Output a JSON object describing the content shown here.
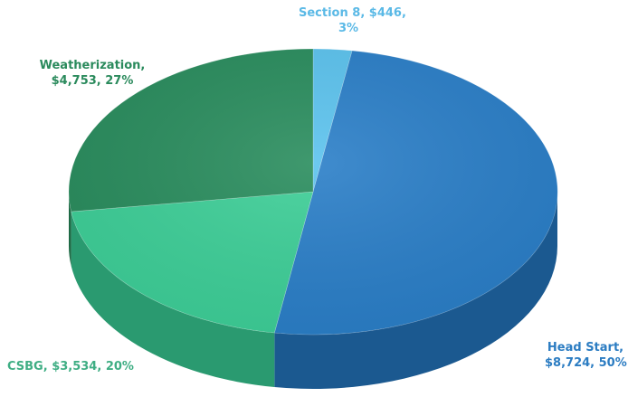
{
  "chart_data": {
    "type": "pie",
    "three_d": true,
    "categories": [
      "Section 8",
      "Head Start",
      "CSBG",
      "Weatherization"
    ],
    "values": [
      446,
      8724,
      3534,
      4753
    ],
    "percentages": [
      3,
      50,
      20,
      27
    ],
    "labels": [
      {
        "line1": "Section 8, $446,",
        "line2": "3%"
      },
      {
        "line1": "Head Start,",
        "line2": "$8,724, 50%"
      },
      {
        "line1": "CSBG, $3,534, 20%",
        "line2": ""
      },
      {
        "line1": "Weatherization,",
        "line2": "$4,753, 27%"
      }
    ],
    "colors": [
      "#5cc3ee",
      "#2b7fc8",
      "#3ecf98",
      "#2a8d5e"
    ],
    "side_colors": [
      "#3e9ac6",
      "#1b5990",
      "#2a9a70",
      "#1e6a45"
    ]
  }
}
